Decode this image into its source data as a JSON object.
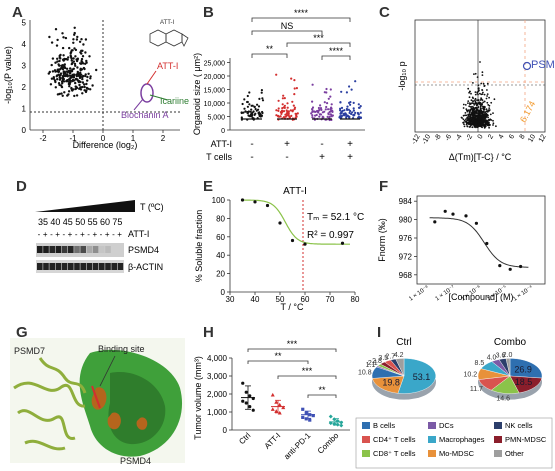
{
  "panels": {
    "A": {
      "label": "A",
      "ylabel": "-log₁₀(P value)",
      "xlabel": "Difference (log₂)",
      "xticks": [
        "-2",
        "-1",
        "0",
        "1",
        "2"
      ],
      "yticks": [
        "0",
        "1",
        "2",
        "3",
        "4",
        "5"
      ],
      "annotations": {
        "atti": "ATT-I",
        "icariine": "Icariine",
        "biochanin": "Biochanin A",
        "structure": "ATT-I"
      }
    },
    "B": {
      "label": "B",
      "ylabel": "Organoid size ( μm²)",
      "yticks": [
        "0",
        "5,000",
        "10,000",
        "15,000",
        "20,000",
        "25,000"
      ],
      "row1_label": "ATT-I",
      "row2_label": "T cells",
      "row1": [
        "-",
        "+",
        "-",
        "+"
      ],
      "row2": [
        "-",
        "-",
        "+",
        "+"
      ],
      "sig": [
        "****",
        "NS",
        "***",
        "**",
        "****"
      ],
      "colors": [
        "#111111",
        "#d32f2f",
        "#7b3fa0",
        "#2b3fa0"
      ]
    },
    "C": {
      "label": "C",
      "ylabel": "-log₁₀ p",
      "xlabel": "Δ(Tm)[T-C} / °C",
      "xticks": [
        "-12",
        "-10",
        "-8",
        "-6",
        "-4",
        "-2",
        "0",
        "2",
        "4",
        "6",
        "8",
        "10",
        "12"
      ],
      "highlight": "PSMD4",
      "value": "6.174"
    },
    "D": {
      "label": "D",
      "temp_label": "T (ºC)",
      "temps": [
        "35",
        "40",
        "45",
        "50",
        "55",
        "60",
        "75"
      ],
      "signs": [
        "-",
        "+",
        "-",
        "+",
        "-",
        "+",
        "-",
        "+",
        "-",
        "+",
        "-",
        "+",
        "-",
        "+"
      ],
      "row_labels": [
        "ATT-I",
        "PSMD4",
        "β-ACTIN"
      ]
    },
    "E": {
      "label": "E",
      "title": "ATT-I",
      "ylabel": "% Soluble fraction",
      "xlabel": "T / °C",
      "xticks": [
        "30",
        "40",
        "50",
        "60",
        "70",
        "80"
      ],
      "yticks": [
        "0",
        "20",
        "40",
        "60",
        "80",
        "100"
      ],
      "tm_text": "Tₘ = 52.1 °C",
      "r2_text": "R² = 0.997"
    },
    "F": {
      "label": "F",
      "ylabel": "Fnorm (‰)",
      "xlabel": "[Compound] (M)",
      "yticks": [
        "968",
        "972",
        "976",
        "980",
        "984"
      ],
      "xticks": [
        "1 × 10⁻⁸",
        "1 × 10⁻⁷",
        "1 × 10⁻⁶",
        "1 × 10⁻⁵",
        "1 × 10⁻⁴"
      ]
    },
    "G": {
      "label": "G",
      "texts": {
        "psmd7": "PSMD7",
        "binding": "Binding site",
        "psmd4": "PSMD4"
      }
    },
    "H": {
      "label": "H",
      "ylabel": "Tumor volume (mm³)",
      "yticks": [
        "0",
        "1,000",
        "2,000",
        "3,000",
        "4,000"
      ],
      "categories": [
        "Ctrl",
        "ATT-I",
        "anti-PD-1",
        "Combo"
      ],
      "sig": [
        "***",
        "**",
        "***",
        "**"
      ],
      "colors": [
        "#111111",
        "#d32f2f",
        "#3f51b5",
        "#26a69a"
      ]
    },
    "I": {
      "label": "I",
      "ctrl_title": "Ctrl",
      "combo_title": "Combo",
      "ctrl_values": [
        "53.1",
        "19.8",
        "10.8",
        "1.1",
        "2.1",
        "2.8",
        "3.5",
        "2.7",
        "4.2"
      ],
      "combo_values": [
        "26.9",
        "18.5",
        "14.6",
        "11.7",
        "10.2",
        "8.5",
        "4.0",
        "3.6",
        "2.0"
      ],
      "legend": [
        "B cells",
        "DCs",
        "NK cells",
        "CD4⁺ T cells",
        "Macrophages",
        "PMN-MDSC",
        "CD8⁺ T cells",
        "Mo-MDSC",
        "Other"
      ],
      "legend_colors": [
        "#2e6fb0",
        "#7b5aa6",
        "#2c3e6b",
        "#d9534f",
        "#3aa7c9",
        "#8b1e2b",
        "#8bc34a",
        "#e8913a",
        "#9e9e9e"
      ]
    }
  }
}
